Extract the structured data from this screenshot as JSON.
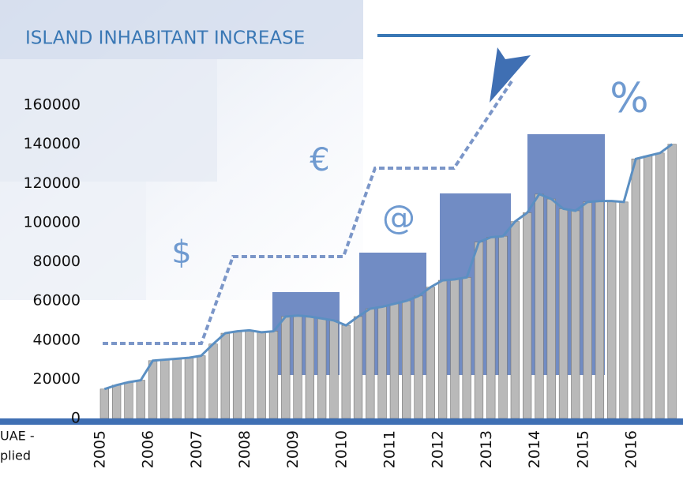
{
  "chart_data": {
    "type": "bar-line",
    "title": "ISLAND INHABITANT INCREASE",
    "annotations": [
      "$",
      "€",
      "@",
      "%"
    ],
    "source": [
      "UAE -",
      "plied"
    ],
    "x": [
      2005,
      2005.25,
      2005.5,
      2005.75,
      2006,
      2006.25,
      2006.5,
      2006.75,
      2007,
      2007.25,
      2007.5,
      2007.75,
      2008,
      2008.25,
      2008.5,
      2008.75,
      2009,
      2009.25,
      2009.5,
      2009.75,
      2010,
      2010.25,
      2010.5,
      2010.75,
      2011,
      2011.25,
      2011.5,
      2011.75,
      2012,
      2012.25,
      2012.5,
      2012.75,
      2013,
      2013.25,
      2013.5,
      2013.75,
      2014,
      2014.25,
      2014.5,
      2014.75,
      2015,
      2015.25,
      2015.5,
      2015.75,
      2016,
      2016.25,
      2016.5,
      2016.75
    ],
    "series": [
      {
        "color": "#5b8fc2",
        "bar_color": "#b9b9b9",
        "values": [
          15000,
          17000,
          18500,
          19500,
          29500,
          30000,
          30500,
          31000,
          32000,
          38000,
          43500,
          44500,
          45000,
          44000,
          44500,
          52000,
          52500,
          52000,
          51000,
          50000,
          47500,
          52000,
          56000,
          57000,
          58500,
          60000,
          62500,
          67000,
          70500,
          71000,
          72000,
          90000,
          92500,
          93000,
          100500,
          105000,
          114500,
          112000,
          107000,
          106000,
          110500,
          111000,
          111000,
          110500,
          132500,
          134000,
          135500,
          140000
        ]
      }
    ],
    "xlim": [
      2005,
      2016.9
    ],
    "xticks": [
      2005,
      2006,
      2007,
      2008,
      2009,
      2010,
      2011,
      2012,
      2013,
      2014,
      2015,
      2016
    ],
    "ylim": [
      0,
      160000
    ],
    "yticks": [
      0,
      20000,
      40000,
      60000,
      80000,
      100000,
      120000,
      140000,
      160000
    ]
  }
}
